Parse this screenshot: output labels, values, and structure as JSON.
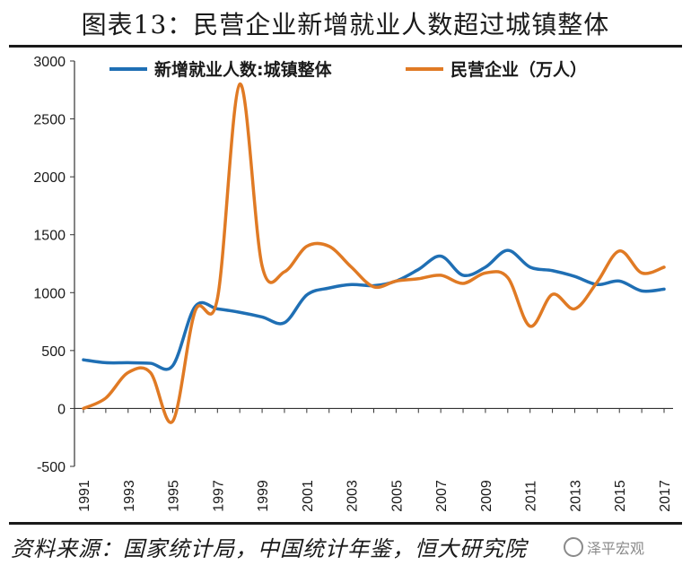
{
  "title": "图表13：民营企业新增就业人数超过城镇整体",
  "source": "资料来源：国家统计局，中国统计年鉴，恒大研究院",
  "watermark": "泽平宏观",
  "colors": {
    "series1": "#1f6fb4",
    "series2": "#e07a24"
  },
  "chart_data": {
    "type": "line",
    "title": "",
    "xlabel": "",
    "ylabel": "",
    "ylim": [
      -500,
      3000
    ],
    "yticks": [
      -500,
      0,
      500,
      1000,
      1500,
      2000,
      2500,
      3000
    ],
    "xtick_labels": [
      "1991",
      "1993",
      "1995",
      "1997",
      "1999",
      "2001",
      "2003",
      "2005",
      "2007",
      "2009",
      "2011",
      "2013",
      "2015",
      "2017"
    ],
    "legend_position": "top",
    "grid": false,
    "x": [
      1991,
      1992,
      1993,
      1994,
      1995,
      1996,
      1997,
      1998,
      1999,
      2000,
      2001,
      2002,
      2003,
      2004,
      2005,
      2006,
      2007,
      2008,
      2009,
      2010,
      2011,
      2012,
      2013,
      2014,
      2015,
      2016,
      2017
    ],
    "series": [
      {
        "name": "新增就业人数:城镇整体",
        "values": [
          420,
          395,
          395,
          390,
          370,
          880,
          860,
          830,
          790,
          740,
          980,
          1040,
          1070,
          1060,
          1100,
          1200,
          1315,
          1150,
          1220,
          1365,
          1220,
          1190,
          1140,
          1070,
          1100,
          1015,
          1030
        ]
      },
      {
        "name": "民营企业（万人）",
        "values": [
          0,
          90,
          310,
          310,
          -110,
          840,
          950,
          2800,
          1230,
          1180,
          1400,
          1400,
          1220,
          1050,
          1100,
          1120,
          1150,
          1080,
          1170,
          1130,
          710,
          985,
          860,
          1090,
          1360,
          1170,
          1220
        ]
      }
    ]
  }
}
